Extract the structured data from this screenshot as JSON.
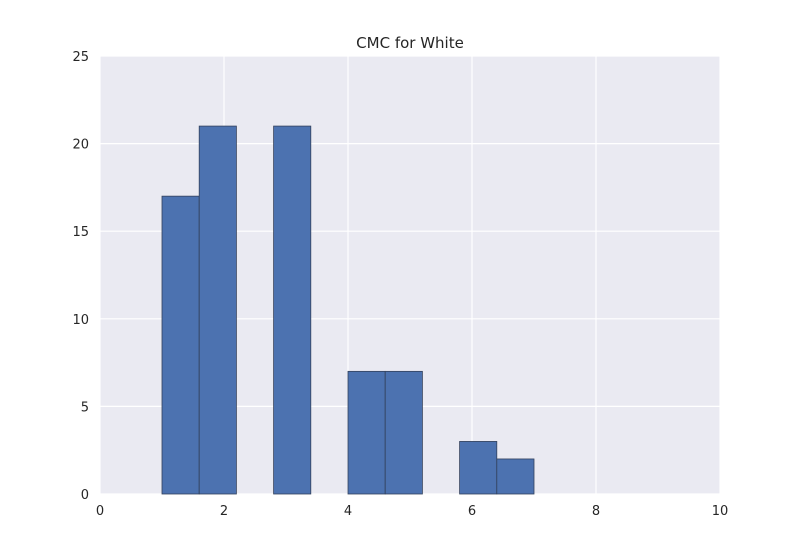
{
  "chart_data": {
    "type": "bar",
    "title": "CMC for White",
    "xlabel": "",
    "ylabel": "",
    "xlim": [
      0,
      10
    ],
    "ylim": [
      0,
      25
    ],
    "xticks": [
      0,
      2,
      4,
      6,
      8,
      10
    ],
    "yticks": [
      0,
      5,
      10,
      15,
      20,
      25
    ],
    "grid": true,
    "background": "#eaeaf2",
    "grid_color": "#ffffff",
    "bar_color": "#4c72b0",
    "bar_edge_color": "#33415c",
    "bins": [
      {
        "x0": 1.0,
        "x1": 1.6,
        "count": 17
      },
      {
        "x0": 1.6,
        "x1": 2.2,
        "count": 21
      },
      {
        "x0": 2.2,
        "x1": 2.8,
        "count": 0
      },
      {
        "x0": 2.8,
        "x1": 3.4,
        "count": 21
      },
      {
        "x0": 3.4,
        "x1": 4.0,
        "count": 0
      },
      {
        "x0": 4.0,
        "x1": 4.6,
        "count": 7
      },
      {
        "x0": 4.6,
        "x1": 5.2,
        "count": 7
      },
      {
        "x0": 5.2,
        "x1": 5.8,
        "count": 0
      },
      {
        "x0": 5.8,
        "x1": 6.4,
        "count": 3
      },
      {
        "x0": 6.4,
        "x1": 7.0,
        "count": 2
      }
    ]
  }
}
